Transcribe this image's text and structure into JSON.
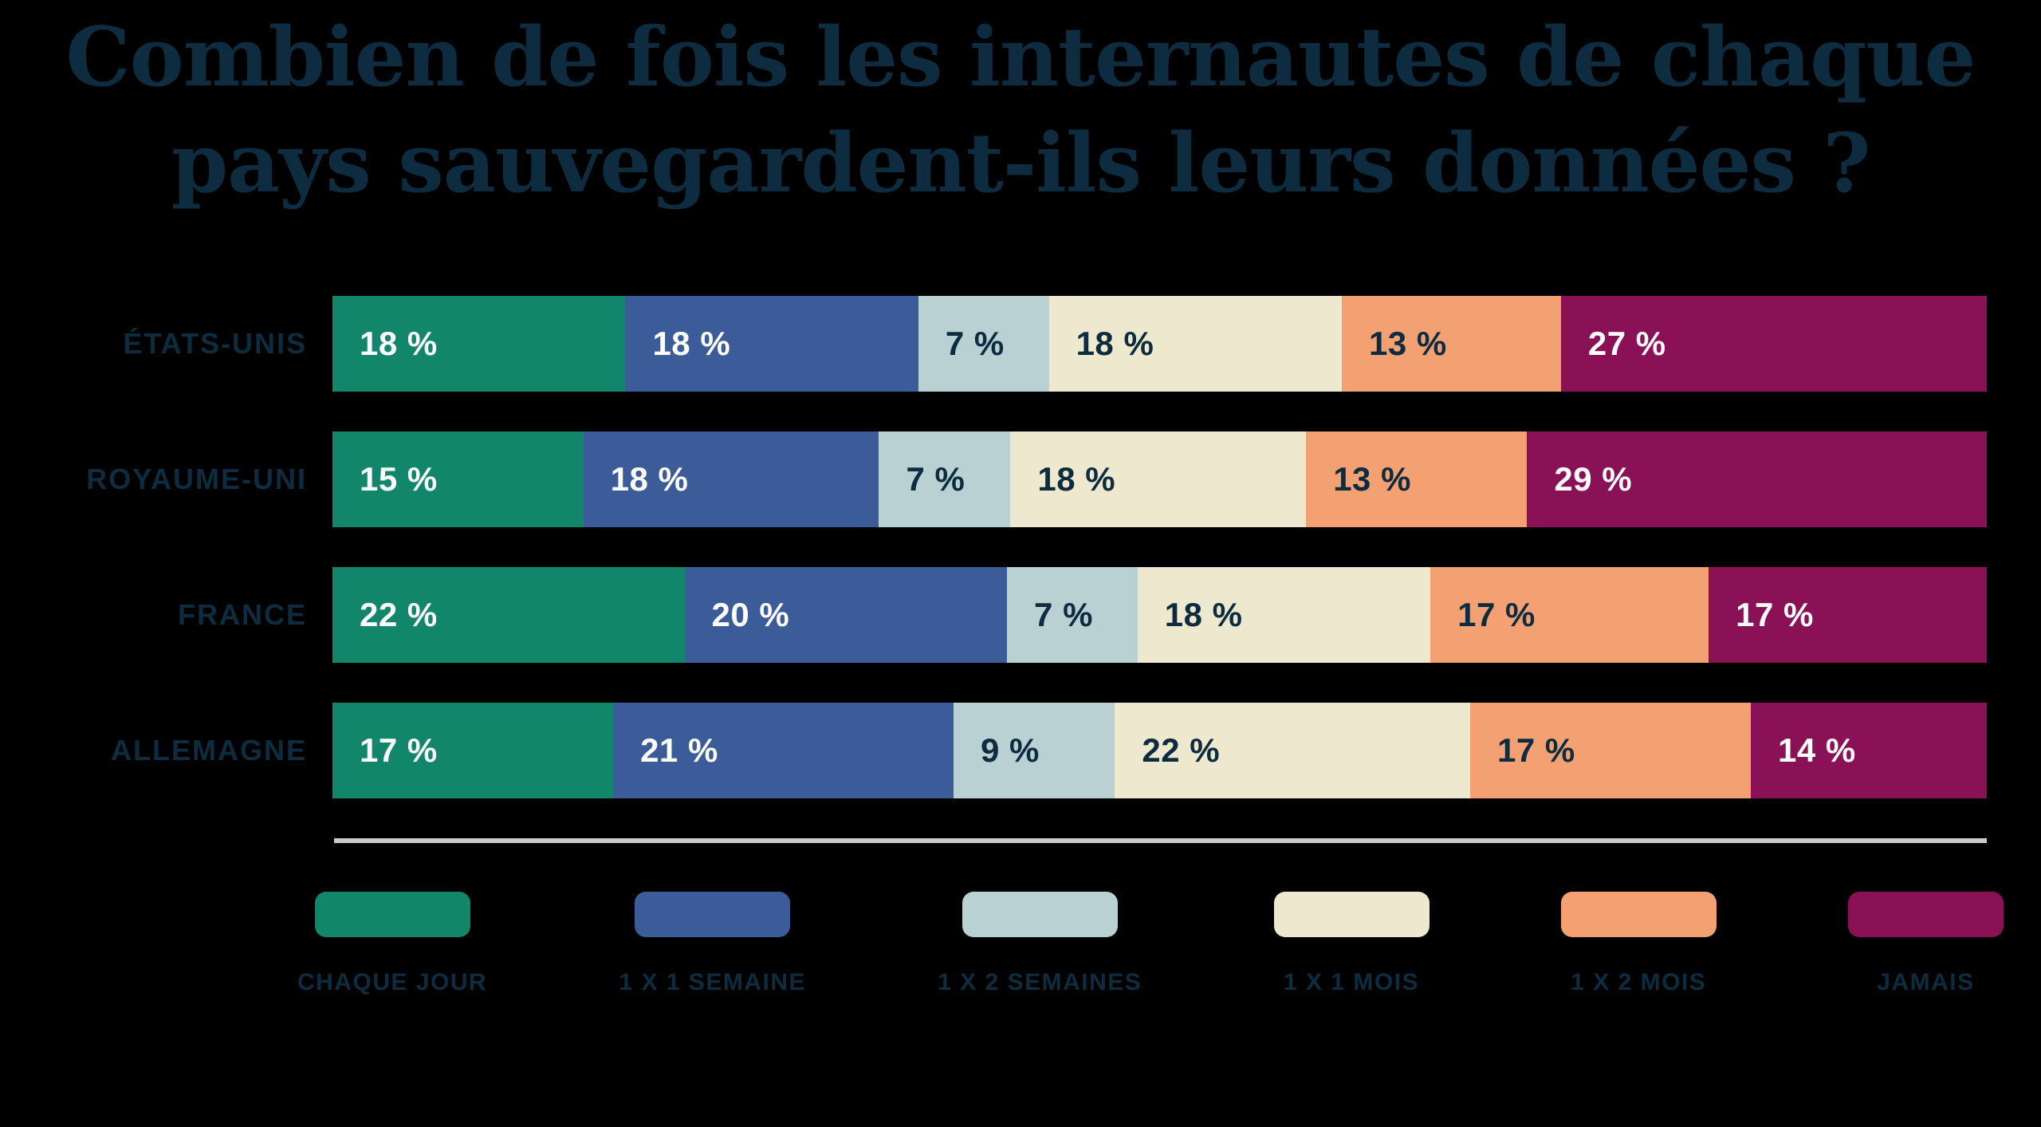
{
  "title": {
    "line1": "Combien de fois les internautes de chaque",
    "line2": "pays sauvegardent-ils leurs données ?"
  },
  "colors": {
    "background": "#000000",
    "text_navy": "#0D2C3F",
    "value_text_light": "#FFFFFF",
    "divider": "#CBCBCB"
  },
  "chart_data": {
    "type": "bar",
    "variant": "horizontal-stacked-100",
    "title": "Combien de fois les internautes de chaque pays sauvegardent-ils leurs données ?",
    "categories": [
      "ÉTATS-UNIS",
      "ROYAUME-UNI",
      "FRANCE",
      "ALLEMAGNE"
    ],
    "series": [
      {
        "name": "CHAQUE JOUR",
        "color": "#12866A",
        "text_color": "#FFFFFF",
        "values": [
          18,
          15,
          22,
          17
        ]
      },
      {
        "name": "1 X 1 SEMAINE",
        "color": "#3C5C99",
        "text_color": "#FFFFFF",
        "values": [
          18,
          18,
          20,
          21
        ]
      },
      {
        "name": "1 X 2 SEMAINES",
        "color": "#BAD1D3",
        "text_color": "#0D2C3F",
        "values": [
          7,
          7,
          7,
          9
        ]
      },
      {
        "name": "1 X 1 MOIS",
        "color": "#EEE9CE",
        "text_color": "#0D2C3F",
        "values": [
          18,
          18,
          18,
          22
        ]
      },
      {
        "name": "1 X 2 MOIS",
        "color": "#F3A173",
        "text_color": "#0D2C3F",
        "values": [
          13,
          13,
          17,
          17
        ]
      },
      {
        "name": "JAMAIS",
        "color": "#8A1156",
        "text_color": "#FFFFFF",
        "values": [
          27,
          29,
          17,
          14
        ]
      }
    ],
    "value_suffix": " %",
    "xlim": [
      0,
      100
    ],
    "grid": false,
    "legend_position": "bottom"
  }
}
